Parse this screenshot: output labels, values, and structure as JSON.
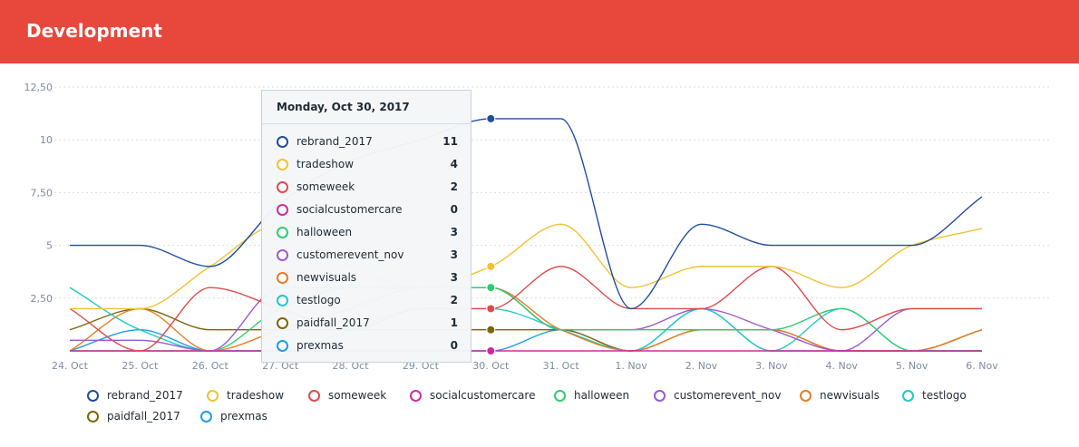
{
  "header": {
    "title": "Development"
  },
  "chart_data": {
    "type": "line",
    "x": [
      "24. Oct",
      "25. Oct",
      "26. Oct",
      "27. Oct",
      "28. Oct",
      "29. Oct",
      "30. Oct",
      "31. Oct",
      "1. Nov",
      "2. Nov",
      "3. Nov",
      "4. Nov",
      "5. Nov",
      "6. Nov"
    ],
    "y_ticks": [
      "2,50",
      "5",
      "7,50",
      "10",
      "12,50"
    ],
    "ylim": [
      0,
      12.5
    ],
    "grid": true,
    "legend_position": "bottom",
    "series": [
      {
        "name": "rebrand_2017",
        "color": "#1f4e9c",
        "values": [
          5,
          5,
          4,
          7,
          9,
          10,
          11,
          11,
          2,
          6,
          5,
          5,
          5,
          7.3
        ]
      },
      {
        "name": "tradeshow",
        "color": "#f1c232",
        "values": [
          2,
          2,
          4,
          6,
          4,
          3,
          4,
          6,
          3,
          4,
          4,
          3,
          5,
          5.8
        ]
      },
      {
        "name": "someweek",
        "color": "#e04b4b",
        "values": [
          2,
          0,
          3,
          2,
          1,
          2,
          2,
          4,
          2,
          2,
          4,
          1,
          2,
          2
        ]
      },
      {
        "name": "socialcustomercare",
        "color": "#cc2d9e",
        "values": [
          0,
          0,
          0,
          0,
          0,
          0,
          0,
          0,
          0,
          0,
          0,
          0,
          0,
          0
        ]
      },
      {
        "name": "halloween",
        "color": "#2ecc71",
        "values": [
          0,
          0,
          0,
          2,
          3,
          3,
          3,
          1,
          1,
          1,
          1,
          2,
          0,
          0
        ]
      },
      {
        "name": "customerevent_nov",
        "color": "#9b59d0",
        "values": [
          0.5,
          0.5,
          0,
          3,
          3,
          3,
          3,
          1,
          1,
          2,
          1,
          0,
          2,
          2
        ]
      },
      {
        "name": "newvisuals",
        "color": "#e67e22",
        "values": [
          0,
          2,
          0,
          1,
          2,
          3,
          3,
          1,
          0,
          1,
          1,
          0,
          0,
          1
        ]
      },
      {
        "name": "testlogo",
        "color": "#1fc9c9",
        "values": [
          3,
          1,
          0,
          0,
          1,
          2,
          2,
          1,
          0,
          2,
          0,
          2,
          0,
          0
        ]
      },
      {
        "name": "paidfall_2017",
        "color": "#7d6608",
        "values": [
          1,
          2,
          1,
          1,
          1,
          1,
          1,
          1,
          0,
          1,
          1,
          0,
          0,
          1
        ]
      },
      {
        "name": "prexmas",
        "color": "#1a9ee0",
        "values": [
          0,
          1,
          0,
          0,
          0,
          0,
          0,
          1,
          0,
          2,
          0,
          0,
          0,
          0
        ]
      }
    ],
    "highlight_index": 6
  },
  "tooltip": {
    "date": "Monday, Oct 30, 2017",
    "rows": [
      {
        "name": "rebrand_2017",
        "value": "11"
      },
      {
        "name": "tradeshow",
        "value": "4"
      },
      {
        "name": "someweek",
        "value": "2"
      },
      {
        "name": "socialcustomercare",
        "value": "0"
      },
      {
        "name": "halloween",
        "value": "3"
      },
      {
        "name": "customerevent_nov",
        "value": "3"
      },
      {
        "name": "newvisuals",
        "value": "3"
      },
      {
        "name": "testlogo",
        "value": "2"
      },
      {
        "name": "paidfall_2017",
        "value": "1"
      },
      {
        "name": "prexmas",
        "value": "0"
      }
    ]
  }
}
